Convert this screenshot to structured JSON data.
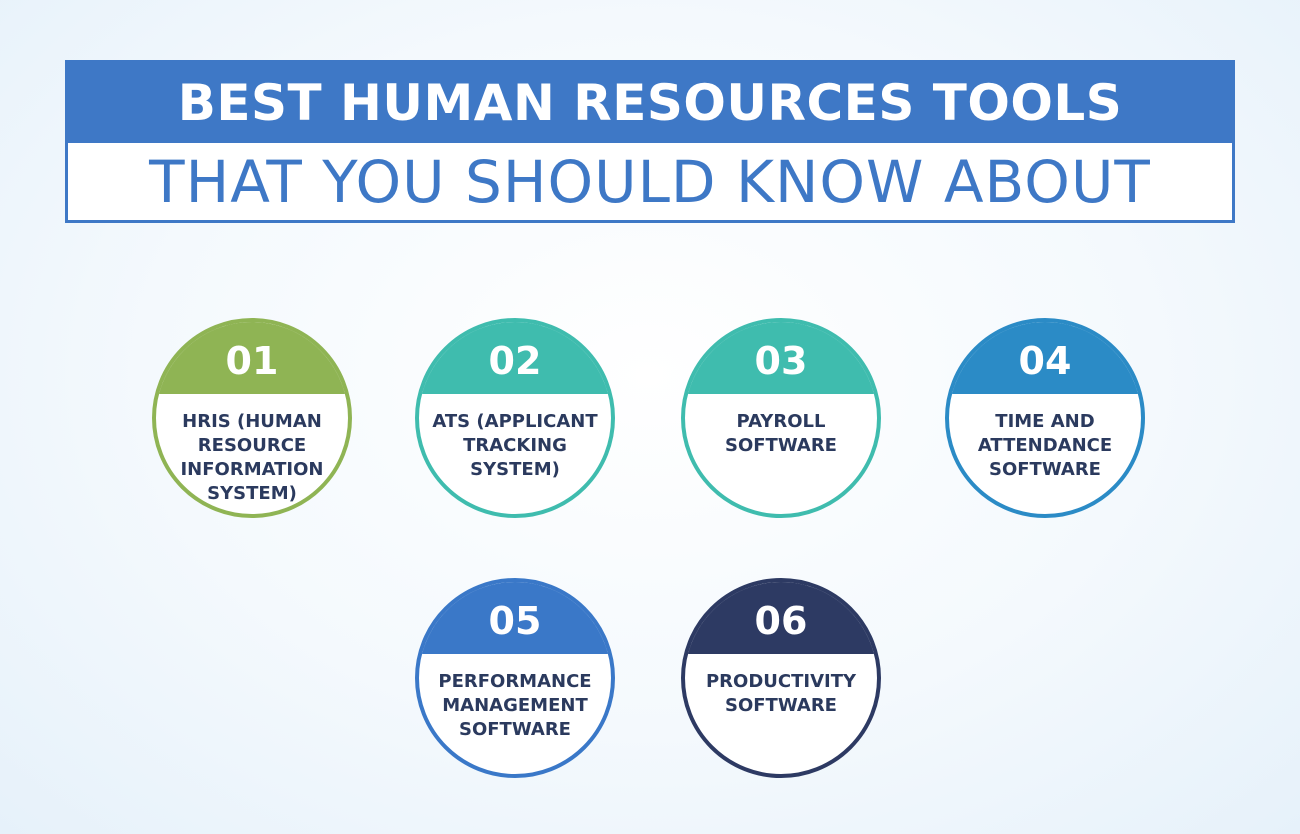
{
  "title": {
    "line1": "BEST HUMAN RESOURCES TOOLS",
    "line2": "THAT YOU SHOULD KNOW ABOUT"
  },
  "colors": {
    "primary_blue": "#3e78c6",
    "green": "#8fb454",
    "teal": "#3fbcae",
    "sky_blue": "#2b8bc6",
    "medium_blue": "#3a78c8",
    "navy": "#2d3a63",
    "text_dark": "#2b3a5e"
  },
  "tools": [
    {
      "number": "01",
      "label": "HRIS (HUMAN\nRESOURCE\nINFORMATION\nSYSTEM)"
    },
    {
      "number": "02",
      "label": "ATS (APPLICANT\nTRACKING\nSYSTEM)"
    },
    {
      "number": "03",
      "label": "PAYROLL\nSOFTWARE"
    },
    {
      "number": "04",
      "label": "TIME AND\nATTENDANCE\nSOFTWARE"
    },
    {
      "number": "05",
      "label": "PERFORMANCE\nMANAGEMENT\nSOFTWARE"
    },
    {
      "number": "06",
      "label": "PRODUCTIVITY\nSOFTWARE"
    }
  ]
}
